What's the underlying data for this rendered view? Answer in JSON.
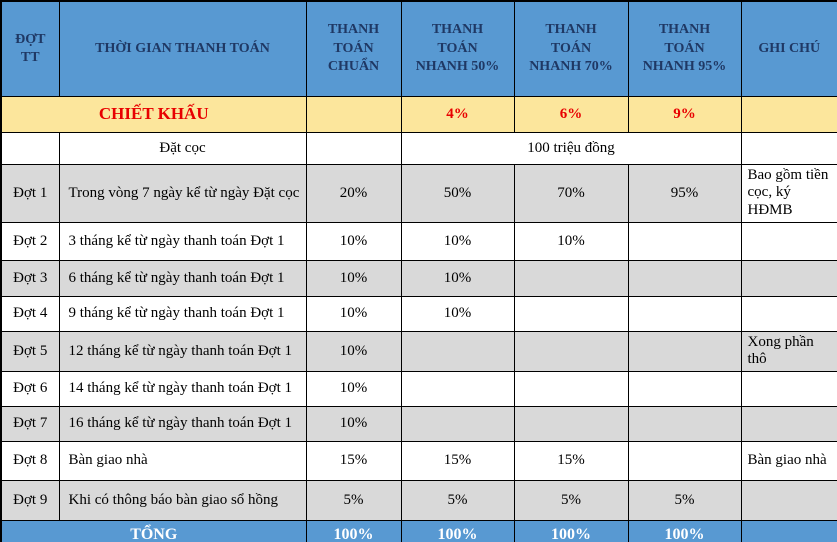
{
  "colors": {
    "header_bg": "#5899d2",
    "header_text": "#1f3864",
    "discount_bg": "#fce69c",
    "discount_text": "#e80000",
    "shaded_row_bg": "#d9d9d9",
    "total_bg": "#5899d2",
    "total_text": "#ffffff",
    "border": "#000000"
  },
  "table": {
    "columns": [
      {
        "label": "ĐỢT TT"
      },
      {
        "label": "THỜI GIAN THANH TOÁN"
      },
      {
        "label": "THANH TOÁN CHUẨN"
      },
      {
        "label": "THANH TOÁN NHANH 50%"
      },
      {
        "label": "THANH TOÁN NHANH 70%"
      },
      {
        "label": "THANH TOÁN NHANH 95%"
      },
      {
        "label": "GHI CHÚ"
      }
    ],
    "discount_row": {
      "label": "CHIẾT KHẤU",
      "chuan": "",
      "nhanh50": "4%",
      "nhanh70": "6%",
      "nhanh95": "9%",
      "note": ""
    },
    "deposit_row": {
      "dot": "",
      "label": "Đặt cọc",
      "chuan": "",
      "amount": "100 triệu đồng",
      "note": ""
    },
    "rows": [
      {
        "dot": "Đợt 1",
        "time": "Trong vòng 7 ngày kể từ ngày Đặt cọc",
        "chuan": "20%",
        "nhanh50": "50%",
        "nhanh70": "70%",
        "nhanh95": "95%",
        "note": "Bao gồm tiền cọc, ký HĐMB",
        "shaded": true,
        "note_plain": true
      },
      {
        "dot": "Đợt 2",
        "time": "3 tháng kể từ ngày thanh toán Đợt 1",
        "chuan": "10%",
        "nhanh50": "10%",
        "nhanh70": "10%",
        "nhanh95": "",
        "note": "",
        "shaded": false
      },
      {
        "dot": "Đợt 3",
        "time": "6 tháng kể từ ngày thanh toán Đợt 1",
        "chuan": "10%",
        "nhanh50": "10%",
        "nhanh70": "",
        "nhanh95": "",
        "note": "",
        "shaded": true
      },
      {
        "dot": "Đợt 4",
        "time": "9 tháng kể từ ngày thanh toán Đợt 1",
        "chuan": "10%",
        "nhanh50": "10%",
        "nhanh70": "",
        "nhanh95": "",
        "note": "",
        "shaded": false
      },
      {
        "dot": "Đợt 5",
        "time": "12 tháng kể từ ngày thanh toán Đợt 1",
        "chuan": "10%",
        "nhanh50": "",
        "nhanh70": "",
        "nhanh95": "",
        "note": "Xong phần thô",
        "shaded": true
      },
      {
        "dot": "Đợt 6",
        "time": "14 tháng kể từ ngày thanh toán Đợt 1",
        "chuan": "10%",
        "nhanh50": "",
        "nhanh70": "",
        "nhanh95": "",
        "note": "",
        "shaded": false
      },
      {
        "dot": "Đợt 7",
        "time": "16 tháng kể từ ngày thanh toán Đợt 1",
        "chuan": "10%",
        "nhanh50": "",
        "nhanh70": "",
        "nhanh95": "",
        "note": "",
        "shaded": true
      },
      {
        "dot": "Đợt 8",
        "time": "Bàn giao nhà",
        "chuan": "15%",
        "nhanh50": "15%",
        "nhanh70": "15%",
        "nhanh95": "",
        "note": "Bàn giao nhà",
        "shaded": false
      },
      {
        "dot": "Đợt 9",
        "time": "Khi có thông báo bàn giao sổ hồng",
        "chuan": "5%",
        "nhanh50": "5%",
        "nhanh70": "5%",
        "nhanh95": "5%",
        "note": "",
        "shaded": true
      }
    ],
    "total_row": {
      "label": "TỔNG",
      "chuan": "100%",
      "nhanh50": "100%",
      "nhanh70": "100%",
      "nhanh95": "100%",
      "note": ""
    }
  }
}
